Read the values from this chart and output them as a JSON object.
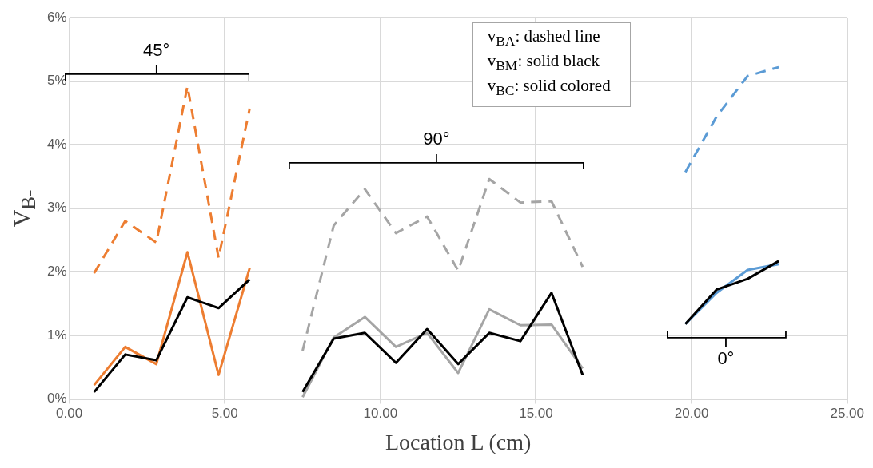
{
  "chart_data": {
    "type": "line",
    "xlabel": "Location L (cm)",
    "ylabel": "V$_{B-}$",
    "xlim": [
      0,
      25
    ],
    "xticks": [
      {
        "value": 0,
        "label": "0.00"
      },
      {
        "value": 5,
        "label": "5.00"
      },
      {
        "value": 10,
        "label": "10.00"
      },
      {
        "value": 15,
        "label": "15.00"
      },
      {
        "value": 20,
        "label": "20.00"
      },
      {
        "value": 25,
        "label": "25.00"
      }
    ],
    "ylim": [
      0,
      6
    ],
    "yticks": [
      {
        "value": 0,
        "label": "0%"
      },
      {
        "value": 1,
        "label": "1%"
      },
      {
        "value": 2,
        "label": "2%"
      },
      {
        "value": 3,
        "label": "3%"
      },
      {
        "value": 4,
        "label": "4%"
      },
      {
        "value": 5,
        "label": "5%"
      },
      {
        "value": 6,
        "label": "6%"
      }
    ],
    "grid": true,
    "marker": "none",
    "series": [
      {
        "color": "#ed7d31",
        "line_style": "dashed",
        "x": [
          0.8,
          1.8,
          2.8,
          3.8,
          4.8,
          5.8
        ],
        "values": [
          1.98,
          2.8,
          2.46,
          4.92,
          2.22,
          4.57
        ]
      },
      {
        "color": "#000000",
        "line_style": "solid",
        "x": [
          0.8,
          1.8,
          2.8,
          3.8,
          4.8,
          5.8
        ],
        "values": [
          0.11,
          0.7,
          0.61,
          1.6,
          1.43,
          1.88
        ]
      },
      {
        "color": "#ed7d31",
        "line_style": "solid",
        "x": [
          0.8,
          1.8,
          2.8,
          3.8,
          4.8,
          5.8
        ],
        "values": [
          0.22,
          0.82,
          0.55,
          2.31,
          0.38,
          2.06
        ]
      },
      {
        "color": "#a5a5a5",
        "line_style": "dashed",
        "x": [
          7.5,
          8.5,
          9.5,
          10.5,
          11.5,
          12.5,
          13.5,
          14.5,
          15.5,
          16.5
        ],
        "values": [
          0.76,
          2.73,
          3.3,
          2.61,
          2.87,
          2.02,
          3.46,
          3.09,
          3.11,
          2.08
        ]
      },
      {
        "color": "#000000",
        "line_style": "solid",
        "x": [
          7.5,
          8.5,
          9.5,
          10.5,
          11.5,
          12.5,
          13.5,
          14.5,
          15.5,
          16.5
        ],
        "values": [
          0.11,
          0.95,
          1.04,
          0.57,
          1.1,
          0.55,
          1.04,
          0.91,
          1.67,
          0.38
        ]
      },
      {
        "color": "#a5a5a5",
        "line_style": "solid",
        "x": [
          7.5,
          8.5,
          9.5,
          10.5,
          11.5,
          12.5,
          13.5,
          14.5,
          15.5,
          16.5
        ],
        "values": [
          0.03,
          0.97,
          1.29,
          0.82,
          1.04,
          0.41,
          1.41,
          1.16,
          1.17,
          0.48
        ]
      },
      {
        "color": "#5b9bd5",
        "line_style": "dashed",
        "x": [
          19.8,
          20.8,
          21.8,
          22.8
        ],
        "values": [
          3.57,
          4.44,
          5.08,
          5.22
        ]
      },
      {
        "color": "#000000",
        "line_style": "solid",
        "x": [
          19.8,
          20.8,
          21.8,
          22.8
        ],
        "values": [
          1.18,
          1.72,
          1.89,
          2.17
        ]
      },
      {
        "color": "#5b9bd5",
        "line_style": "solid",
        "x": [
          19.8,
          20.8,
          21.8,
          22.8
        ],
        "values": [
          1.18,
          1.67,
          2.03,
          2.12
        ]
      }
    ],
    "annotations": [
      "45°",
      "90°",
      "0°",
      "v$_{BA}$: dashed line",
      "v$_{BM}$: solid black",
      "v$_{BC}$: solid colored"
    ]
  }
}
